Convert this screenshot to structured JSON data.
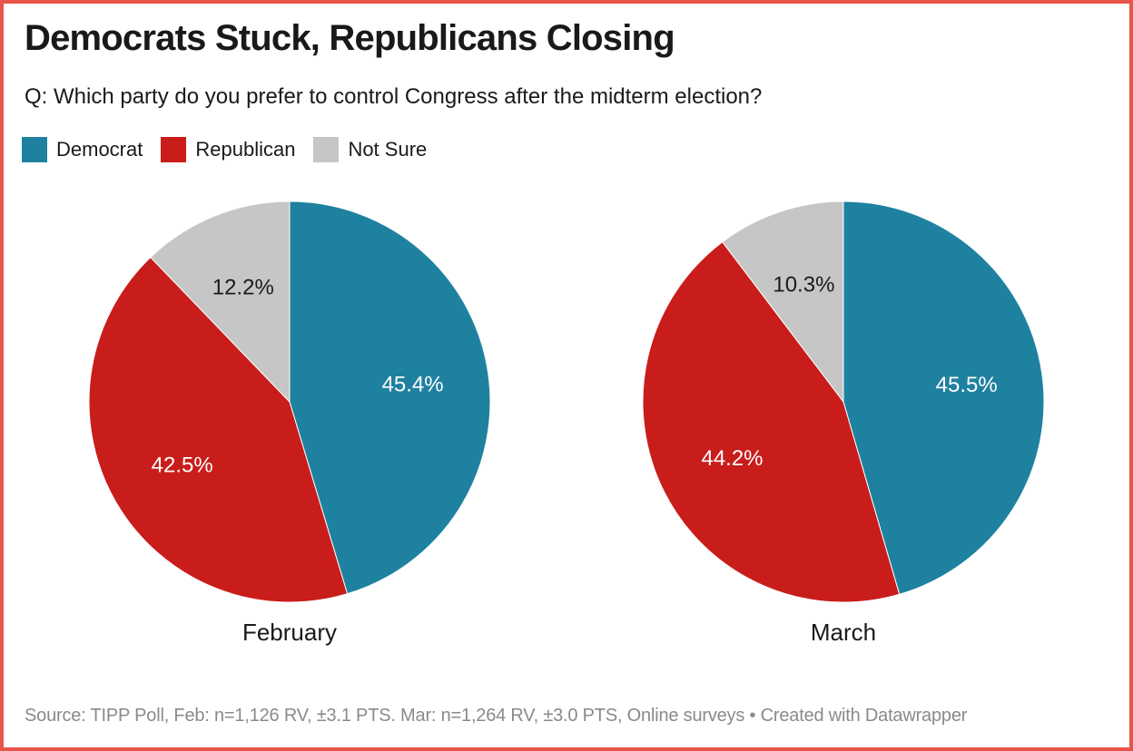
{
  "header": {
    "title": "Democrats Stuck, Republicans Closing",
    "subtitle": "Q: Which party do you prefer to control Congress after the midterm election?"
  },
  "chart_data": {
    "type": "pie",
    "title": "Democrats Stuck, Republicans Closing",
    "question": "Q: Which party do you prefer to control Congress after the midterm election?",
    "legend": [
      {
        "label": "Democrat",
        "color": "#1f81a0",
        "label_text_color": "#ffffff"
      },
      {
        "label": "Republican",
        "color": "#c91d1b",
        "label_text_color": "#ffffff"
      },
      {
        "label": "Not Sure",
        "color": "#c6c6c6",
        "label_text_color": "#1a1a1a"
      }
    ],
    "start_angle_deg": 0,
    "direction": "clockwise",
    "label_radius_ratio": 0.62,
    "charts": [
      {
        "label": "February",
        "values": [
          45.4,
          42.5,
          12.2
        ]
      },
      {
        "label": "March",
        "values": [
          45.5,
          44.2,
          10.3
        ]
      }
    ]
  },
  "footer": {
    "source": "Source: TIPP Poll, Feb: n=1,126 RV, ±3.1 PTS. Mar: n=1,264 RV, ±3.0 PTS, Online surveys",
    "separator": " • ",
    "attribution": "Created with Datawrapper"
  }
}
